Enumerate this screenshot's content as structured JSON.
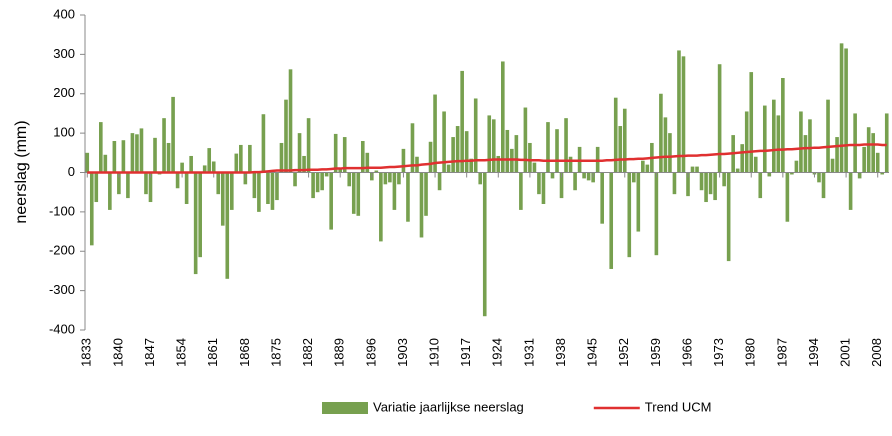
{
  "chart_data": {
    "type": "bar",
    "y_label": "neerslag (mm)",
    "categories": [
      "1833",
      null,
      null,
      null,
      null,
      null,
      null,
      "1840",
      null,
      null,
      null,
      null,
      null,
      null,
      "1847",
      null,
      null,
      null,
      null,
      null,
      null,
      "1854",
      null,
      null,
      null,
      null,
      null,
      null,
      "1861",
      null,
      null,
      null,
      null,
      null,
      null,
      "1868",
      null,
      null,
      null,
      null,
      null,
      null,
      "1875",
      null,
      null,
      null,
      null,
      null,
      null,
      "1882",
      null,
      null,
      null,
      null,
      null,
      null,
      "1889",
      null,
      null,
      null,
      null,
      null,
      null,
      "1896",
      null,
      null,
      null,
      null,
      null,
      null,
      "1903",
      null,
      null,
      null,
      null,
      null,
      null,
      "1910",
      null,
      null,
      null,
      null,
      null,
      null,
      "1917",
      null,
      null,
      null,
      null,
      null,
      null,
      "1924",
      null,
      null,
      null,
      null,
      null,
      null,
      "1931",
      null,
      null,
      null,
      null,
      null,
      null,
      "1938",
      null,
      null,
      null,
      null,
      null,
      null,
      "1945",
      null,
      null,
      null,
      null,
      null,
      null,
      "1952",
      null,
      null,
      null,
      null,
      null,
      null,
      "1959",
      null,
      null,
      null,
      null,
      null,
      null,
      "1966",
      null,
      null,
      null,
      null,
      null,
      null,
      "1973",
      null,
      null,
      null,
      null,
      null,
      null,
      "1980",
      null,
      null,
      null,
      null,
      null,
      null,
      "1987",
      null,
      null,
      null,
      null,
      null,
      null,
      "1994",
      null,
      null,
      null,
      null,
      null,
      null,
      "2001",
      null,
      null,
      null,
      null,
      null,
      null,
      "2008",
      null,
      null
    ],
    "series": [
      {
        "name": "Variatie jaarlijkse neerslag",
        "color": "#77a04f",
        "kind": "bar",
        "values": [
          50,
          -185,
          -75,
          128,
          45,
          -95,
          80,
          -55,
          82,
          -65,
          100,
          97,
          112,
          -55,
          -75,
          88,
          -5,
          138,
          75,
          192,
          -40,
          25,
          -80,
          42,
          -258,
          -215,
          18,
          62,
          28,
          -55,
          -135,
          -270,
          -95,
          48,
          70,
          -30,
          70,
          -65,
          -100,
          148,
          -80,
          -95,
          -70,
          75,
          185,
          262,
          -35,
          100,
          42,
          138,
          -65,
          -50,
          -45,
          -10,
          -145,
          98,
          10,
          90,
          -35,
          -105,
          -110,
          80,
          50,
          -20,
          5,
          -175,
          -30,
          -25,
          -95,
          -30,
          60,
          -125,
          125,
          40,
          -165,
          -110,
          78,
          198,
          -45,
          155,
          20,
          90,
          118,
          258,
          105,
          35,
          188,
          -30,
          -365,
          145,
          135,
          42,
          282,
          108,
          60,
          95,
          -95,
          165,
          75,
          25,
          -55,
          -80,
          128,
          -15,
          110,
          -65,
          138,
          40,
          -45,
          65,
          -15,
          -20,
          -25,
          65,
          -130,
          0,
          -245,
          190,
          118,
          162,
          -215,
          -25,
          -150,
          30,
          20,
          75,
          -210,
          200,
          140,
          100,
          -55,
          310,
          295,
          -60,
          15,
          15,
          -45,
          -75,
          -55,
          -70,
          275,
          -35,
          -225,
          95,
          10,
          72,
          155,
          255,
          40,
          -65,
          170,
          -10,
          185,
          145,
          240,
          -125,
          -5,
          30,
          155,
          95,
          135,
          -5,
          -25,
          -65,
          185,
          35,
          90,
          328,
          315,
          -95,
          150,
          -15,
          65,
          115,
          100,
          50,
          -5,
          150
        ]
      },
      {
        "name": "Trend UCM",
        "color": "#e03030",
        "kind": "line",
        "values": [
          0,
          0,
          0,
          0,
          0,
          0,
          0,
          0,
          0,
          0,
          0,
          0,
          0,
          0,
          0,
          0,
          0,
          0,
          0,
          0,
          0,
          0,
          0,
          0,
          0,
          0,
          0,
          0,
          0,
          0,
          0,
          0,
          0,
          0,
          0,
          0,
          0,
          1,
          1,
          2,
          3,
          4,
          5,
          5,
          5,
          5,
          6,
          6,
          6,
          7,
          7,
          7,
          8,
          8,
          9,
          10,
          10,
          11,
          11,
          11,
          11,
          11,
          12,
          12,
          12,
          12,
          13,
          14,
          14,
          15,
          16,
          17,
          18,
          18,
          20,
          21,
          22,
          24,
          25,
          26,
          27,
          28,
          29,
          29,
          30,
          30,
          31,
          31,
          31,
          32,
          33,
          33,
          33,
          33,
          33,
          33,
          32,
          32,
          31,
          31,
          31,
          30,
          30,
          30,
          30,
          30,
          30,
          30,
          30,
          30,
          30,
          30,
          30,
          30,
          30,
          31,
          31,
          32,
          33,
          33,
          34,
          34,
          35,
          35,
          36,
          37,
          38,
          39,
          40,
          40,
          41,
          42,
          42,
          43,
          43,
          43,
          44,
          44,
          45,
          46,
          47,
          47,
          48,
          49,
          50,
          51,
          52,
          53,
          54,
          55,
          55,
          56,
          57,
          58,
          58,
          59,
          59,
          60,
          61,
          62,
          62,
          63,
          63,
          64,
          65,
          66,
          67,
          68,
          69,
          70,
          70,
          70,
          71,
          71,
          71,
          71,
          70,
          70
        ]
      }
    ],
    "ylim": [
      -400,
      400
    ],
    "yticks": [
      -400,
      -300,
      -200,
      -100,
      0,
      100,
      200,
      300,
      400
    ],
    "legend": "bottom"
  }
}
